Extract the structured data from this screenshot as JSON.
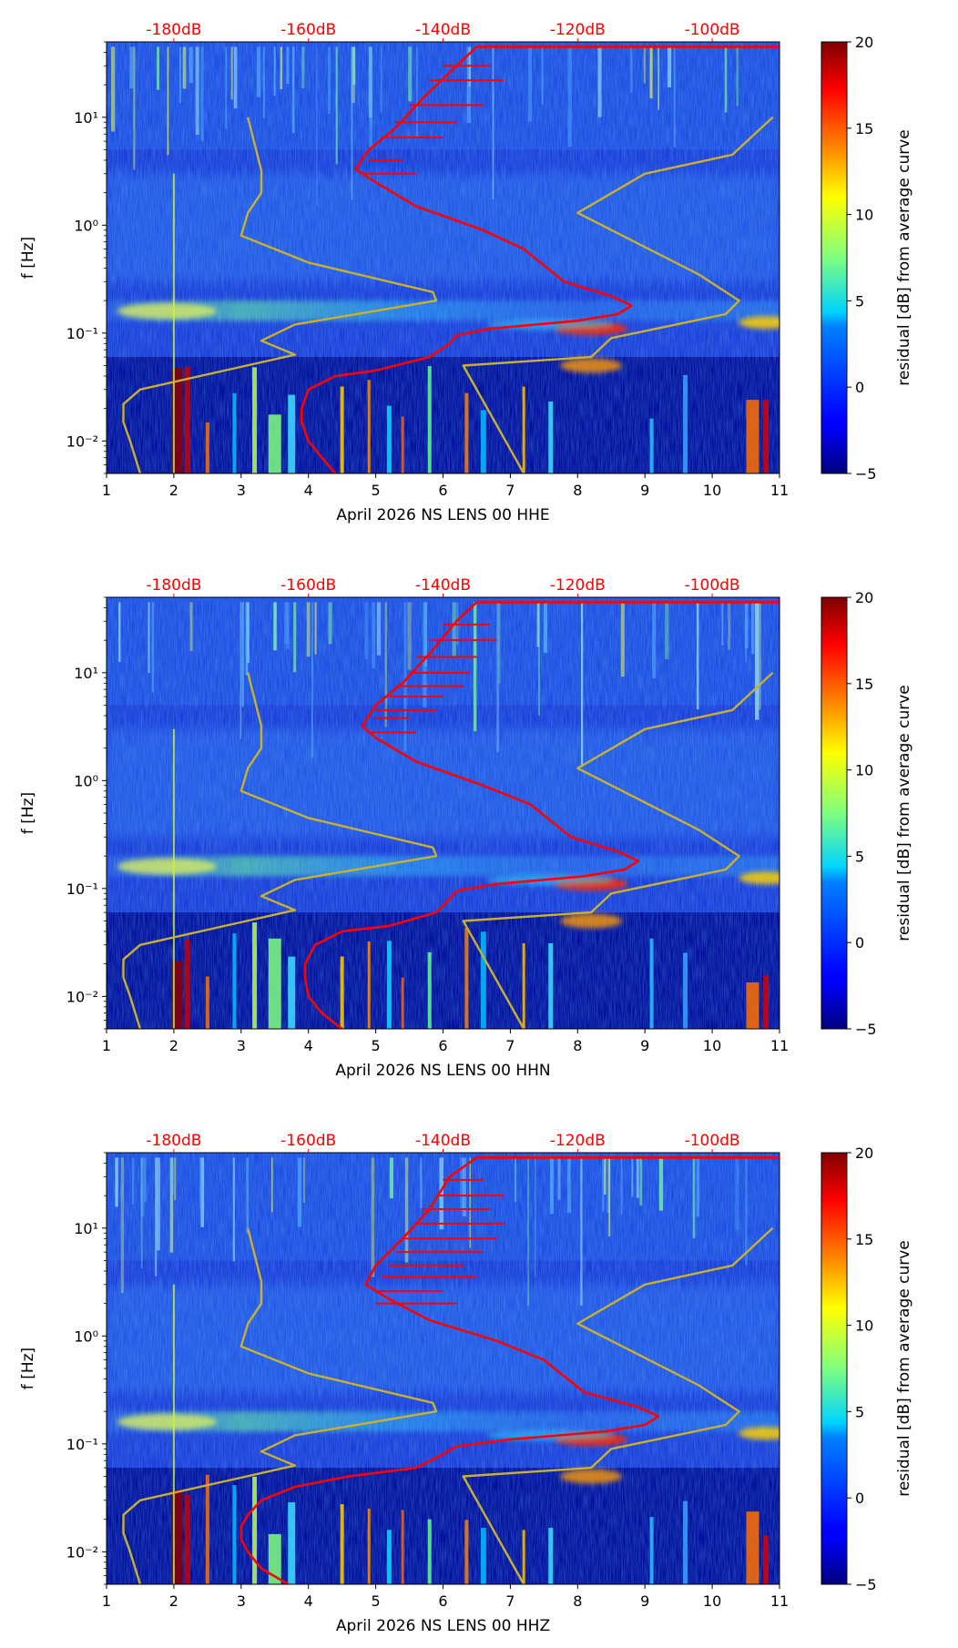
{
  "chart_data": [
    {
      "type": "heatmap",
      "xlabel": "April 2026 NS LENS 00 HHE",
      "ylabel": "f [Hz]",
      "xlim": [
        1,
        11
      ],
      "xticks": [
        "1",
        "2",
        "3",
        "4",
        "5",
        "6",
        "7",
        "8",
        "9",
        "10",
        "11"
      ],
      "ylim": [
        0.005,
        50
      ],
      "yscale": "log",
      "yticks": [
        {
          "value": 10,
          "label": "10¹"
        },
        {
          "value": 1,
          "label": "10⁰"
        },
        {
          "value": 0.1,
          "label": "10⁻¹"
        },
        {
          "value": 0.01,
          "label": "10⁻²"
        }
      ],
      "top_axis_labels": [
        "-180dB",
        "-160dB",
        "-140dB",
        "-120dB",
        "-100dB"
      ],
      "top_axis_values": [
        2,
        4,
        6,
        8,
        10
      ],
      "colorbar": {
        "label": "residual [dB] from average curve",
        "min": -5,
        "max": 20,
        "ticks": [
          "20",
          "15",
          "10",
          "5",
          "0",
          "−5"
        ]
      },
      "series": [
        {
          "name": "noise-model-low",
          "color": "#c8b030",
          "points": [
            [
              1.5,
              0.005
            ],
            [
              1.35,
              0.01
            ],
            [
              1.25,
              0.015
            ],
            [
              1.25,
              0.022
            ],
            [
              1.5,
              0.03
            ],
            [
              3.8,
              0.063
            ],
            [
              3.3,
              0.085
            ],
            [
              3.8,
              0.12
            ],
            [
              5.9,
              0.2
            ],
            [
              5.85,
              0.24
            ],
            [
              4.0,
              0.45
            ],
            [
              3.0,
              0.8
            ],
            [
              3.1,
              1.3
            ],
            [
              3.3,
              2.0
            ],
            [
              3.3,
              3.2
            ],
            [
              3.1,
              10.0
            ]
          ]
        },
        {
          "name": "noise-model-high",
          "color": "#c8b030",
          "points": [
            [
              7.2,
              0.005
            ],
            [
              6.3,
              0.05
            ],
            [
              8.2,
              0.06
            ],
            [
              8.5,
              0.09
            ],
            [
              10.2,
              0.15
            ],
            [
              10.4,
              0.2
            ],
            [
              9.8,
              0.35
            ],
            [
              8.0,
              1.3
            ],
            [
              9.0,
              3.0
            ],
            [
              10.3,
              4.5
            ],
            [
              10.9,
              10.0
            ]
          ]
        },
        {
          "name": "average-psd-curve",
          "color": "#ff0000",
          "points": [
            [
              4.4,
              0.005
            ],
            [
              4.2,
              0.007
            ],
            [
              4.0,
              0.01
            ],
            [
              3.9,
              0.015
            ],
            [
              3.9,
              0.02
            ],
            [
              4.0,
              0.03
            ],
            [
              4.4,
              0.04
            ],
            [
              5.0,
              0.045
            ],
            [
              5.8,
              0.06
            ],
            [
              6.1,
              0.08
            ],
            [
              6.2,
              0.095
            ],
            [
              6.7,
              0.11
            ],
            [
              8.0,
              0.13
            ],
            [
              8.6,
              0.15
            ],
            [
              8.8,
              0.18
            ],
            [
              8.5,
              0.22
            ],
            [
              7.8,
              0.3
            ],
            [
              7.2,
              0.6
            ],
            [
              6.6,
              0.9
            ],
            [
              5.6,
              1.5
            ],
            [
              5.0,
              2.5
            ],
            [
              4.7,
              3.3
            ],
            [
              4.9,
              5.0
            ],
            [
              5.3,
              8.0
            ],
            [
              5.7,
              15.0
            ],
            [
              6.2,
              30.0
            ],
            [
              6.5,
              45.0
            ],
            [
              11.0,
              45.0
            ]
          ]
        }
      ],
      "spikes": [
        {
          "name": "avg-psd-spikes",
          "color": "#ff0000",
          "points": [
            [
              4.8,
              3.0,
              5.6
            ],
            [
              4.9,
              4.0,
              5.4
            ],
            [
              5.1,
              6.5,
              6.0
            ],
            [
              5.3,
              9.0,
              6.2
            ],
            [
              5.5,
              13.0,
              6.6
            ],
            [
              5.8,
              22.0,
              6.9
            ],
            [
              6.0,
              30.0,
              6.7
            ]
          ]
        }
      ]
    },
    {
      "type": "heatmap",
      "xlabel": "April 2026 NS LENS 00 HHN",
      "ylabel": "f [Hz]",
      "xlim": [
        1,
        11
      ],
      "xticks": [
        "1",
        "2",
        "3",
        "4",
        "5",
        "6",
        "7",
        "8",
        "9",
        "10",
        "11"
      ],
      "ylim": [
        0.005,
        50
      ],
      "yscale": "log",
      "yticks": [
        {
          "value": 10,
          "label": "10¹"
        },
        {
          "value": 1,
          "label": "10⁰"
        },
        {
          "value": 0.1,
          "label": "10⁻¹"
        },
        {
          "value": 0.01,
          "label": "10⁻²"
        }
      ],
      "top_axis_labels": [
        "-180dB",
        "-160dB",
        "-140dB",
        "-120dB",
        "-100dB"
      ],
      "top_axis_values": [
        2,
        4,
        6,
        8,
        10
      ],
      "colorbar": {
        "label": "residual [dB] from average curve",
        "min": -5,
        "max": 20,
        "ticks": [
          "20",
          "15",
          "10",
          "5",
          "0",
          "−5"
        ]
      },
      "series": [
        {
          "name": "noise-model-low",
          "color": "#c8b030",
          "points": [
            [
              1.5,
              0.005
            ],
            [
              1.35,
              0.01
            ],
            [
              1.25,
              0.015
            ],
            [
              1.25,
              0.022
            ],
            [
              1.5,
              0.03
            ],
            [
              3.8,
              0.063
            ],
            [
              3.3,
              0.085
            ],
            [
              3.8,
              0.12
            ],
            [
              5.9,
              0.2
            ],
            [
              5.85,
              0.24
            ],
            [
              4.0,
              0.45
            ],
            [
              3.0,
              0.8
            ],
            [
              3.1,
              1.3
            ],
            [
              3.3,
              2.0
            ],
            [
              3.3,
              3.2
            ],
            [
              3.1,
              10.0
            ]
          ]
        },
        {
          "name": "noise-model-high",
          "color": "#c8b030",
          "points": [
            [
              7.2,
              0.005
            ],
            [
              6.3,
              0.05
            ],
            [
              8.2,
              0.06
            ],
            [
              8.5,
              0.09
            ],
            [
              10.2,
              0.15
            ],
            [
              10.4,
              0.2
            ],
            [
              9.8,
              0.35
            ],
            [
              8.0,
              1.3
            ],
            [
              9.0,
              3.0
            ],
            [
              10.3,
              4.5
            ],
            [
              10.9,
              10.0
            ]
          ]
        },
        {
          "name": "average-psd-curve",
          "color": "#ff0000",
          "points": [
            [
              4.5,
              0.005
            ],
            [
              4.2,
              0.007
            ],
            [
              4.0,
              0.01
            ],
            [
              3.95,
              0.015
            ],
            [
              3.95,
              0.02
            ],
            [
              4.1,
              0.03
            ],
            [
              4.5,
              0.04
            ],
            [
              5.2,
              0.045
            ],
            [
              5.9,
              0.06
            ],
            [
              6.1,
              0.08
            ],
            [
              6.2,
              0.095
            ],
            [
              6.8,
              0.11
            ],
            [
              8.1,
              0.13
            ],
            [
              8.7,
              0.15
            ],
            [
              8.9,
              0.18
            ],
            [
              8.6,
              0.22
            ],
            [
              7.9,
              0.3
            ],
            [
              7.3,
              0.6
            ],
            [
              6.6,
              0.9
            ],
            [
              5.6,
              1.5
            ],
            [
              5.0,
              2.5
            ],
            [
              4.8,
              3.2
            ],
            [
              5.0,
              5.0
            ],
            [
              5.4,
              8.0
            ],
            [
              5.8,
              15.0
            ],
            [
              6.2,
              30.0
            ],
            [
              6.5,
              45.0
            ],
            [
              11.0,
              45.0
            ]
          ]
        }
      ],
      "spikes": [
        {
          "name": "avg-psd-spikes",
          "color": "#ff0000",
          "points": [
            [
              4.9,
              2.8,
              5.6
            ],
            [
              5.0,
              3.8,
              5.5
            ],
            [
              5.0,
              4.5,
              5.9
            ],
            [
              5.2,
              6.0,
              6.0
            ],
            [
              5.3,
              7.5,
              6.3
            ],
            [
              5.5,
              10.0,
              6.4
            ],
            [
              5.6,
              14.0,
              6.5
            ],
            [
              5.8,
              20.0,
              6.8
            ],
            [
              6.0,
              28.0,
              6.7
            ]
          ]
        }
      ]
    },
    {
      "type": "heatmap",
      "xlabel": "April 2026 NS LENS 00 HHZ",
      "ylabel": "f [Hz]",
      "xlim": [
        1,
        11
      ],
      "xticks": [
        "1",
        "2",
        "3",
        "4",
        "5",
        "6",
        "7",
        "8",
        "9",
        "10",
        "11"
      ],
      "ylim": [
        0.005,
        50
      ],
      "yscale": "log",
      "yticks": [
        {
          "value": 10,
          "label": "10¹"
        },
        {
          "value": 1,
          "label": "10⁰"
        },
        {
          "value": 0.1,
          "label": "10⁻¹"
        },
        {
          "value": 0.01,
          "label": "10⁻²"
        }
      ],
      "top_axis_labels": [
        "-180dB",
        "-160dB",
        "-140dB",
        "-120dB",
        "-100dB"
      ],
      "top_axis_values": [
        2,
        4,
        6,
        8,
        10
      ],
      "colorbar": {
        "label": "residual [dB] from average curve",
        "min": -5,
        "max": 20,
        "ticks": [
          "20",
          "15",
          "10",
          "5",
          "0",
          "−5"
        ]
      },
      "series": [
        {
          "name": "noise-model-low",
          "color": "#c8b030",
          "points": [
            [
              1.5,
              0.005
            ],
            [
              1.35,
              0.01
            ],
            [
              1.25,
              0.015
            ],
            [
              1.25,
              0.022
            ],
            [
              1.5,
              0.03
            ],
            [
              3.8,
              0.063
            ],
            [
              3.3,
              0.085
            ],
            [
              3.8,
              0.12
            ],
            [
              5.9,
              0.2
            ],
            [
              5.85,
              0.24
            ],
            [
              4.0,
              0.45
            ],
            [
              3.0,
              0.8
            ],
            [
              3.1,
              1.3
            ],
            [
              3.3,
              2.0
            ],
            [
              3.3,
              3.2
            ],
            [
              3.1,
              10.0
            ]
          ]
        },
        {
          "name": "noise-model-high",
          "color": "#c8b030",
          "points": [
            [
              7.2,
              0.005
            ],
            [
              6.3,
              0.05
            ],
            [
              8.2,
              0.06
            ],
            [
              8.5,
              0.09
            ],
            [
              10.2,
              0.15
            ],
            [
              10.4,
              0.2
            ],
            [
              9.8,
              0.35
            ],
            [
              8.0,
              1.3
            ],
            [
              9.0,
              3.0
            ],
            [
              10.3,
              4.5
            ],
            [
              10.9,
              10.0
            ]
          ]
        },
        {
          "name": "average-psd-curve",
          "color": "#ff0000",
          "points": [
            [
              3.7,
              0.005
            ],
            [
              3.3,
              0.007
            ],
            [
              3.1,
              0.01
            ],
            [
              3.0,
              0.013
            ],
            [
              3.0,
              0.017
            ],
            [
              3.1,
              0.022
            ],
            [
              3.3,
              0.03
            ],
            [
              3.8,
              0.04
            ],
            [
              4.6,
              0.05
            ],
            [
              5.6,
              0.06
            ],
            [
              6.0,
              0.08
            ],
            [
              6.2,
              0.095
            ],
            [
              7.0,
              0.11
            ],
            [
              8.4,
              0.13
            ],
            [
              9.0,
              0.15
            ],
            [
              9.2,
              0.18
            ],
            [
              8.9,
              0.22
            ],
            [
              8.1,
              0.3
            ],
            [
              7.5,
              0.6
            ],
            [
              6.8,
              0.9
            ],
            [
              5.8,
              1.4
            ],
            [
              5.2,
              2.2
            ],
            [
              4.85,
              3.0
            ],
            [
              5.0,
              4.5
            ],
            [
              5.4,
              8.0
            ],
            [
              5.8,
              15.0
            ],
            [
              6.1,
              30.0
            ],
            [
              6.5,
              45.0
            ],
            [
              11.0,
              45.0
            ]
          ]
        }
      ],
      "spikes": [
        {
          "name": "avg-psd-spikes",
          "color": "#ff0000",
          "points": [
            [
              5.0,
              2.0,
              6.2
            ],
            [
              5.0,
              2.6,
              6.0
            ],
            [
              5.1,
              3.5,
              6.5
            ],
            [
              5.2,
              4.5,
              6.3
            ],
            [
              5.3,
              6.0,
              6.6
            ],
            [
              5.4,
              8.0,
              6.8
            ],
            [
              5.6,
              11.0,
              6.9
            ],
            [
              5.7,
              15.0,
              6.7
            ],
            [
              5.9,
              20.0,
              6.9
            ],
            [
              6.0,
              28.0,
              6.6
            ]
          ]
        }
      ]
    }
  ]
}
